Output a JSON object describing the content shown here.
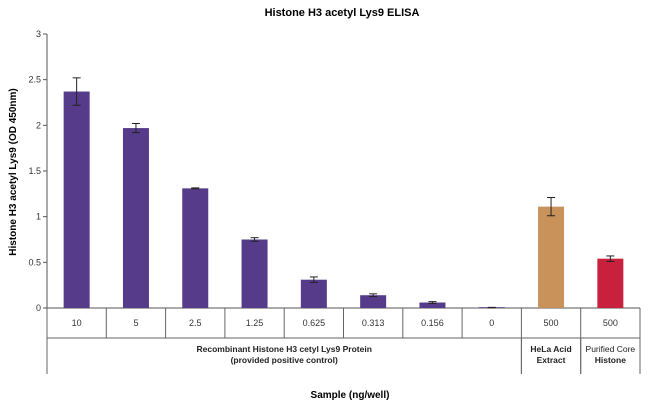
{
  "chart_data": {
    "type": "bar",
    "title": "Histone H3 acetyl Lys9 ELISA",
    "xlabel": "Sample (ng/well)",
    "ylabel": "Histone H3 acetyl Lys9 (OD 450nm)",
    "ylim": [
      0,
      3
    ],
    "yticks": [
      "0",
      "0.5",
      "1",
      "1.5",
      "2",
      "2.5",
      "3"
    ],
    "yticks_values": [
      0,
      0.5,
      1,
      1.5,
      2,
      2.5,
      3
    ],
    "grid": false,
    "categories": [
      "10",
      "5",
      "2.5",
      "1.25",
      "0.625",
      "0.313",
      "0.156",
      "0",
      "500",
      "500"
    ],
    "values": [
      2.37,
      1.97,
      1.31,
      0.75,
      0.31,
      0.14,
      0.06,
      0.005,
      1.11,
      0.54
    ],
    "errors": [
      0.15,
      0.05,
      0.005,
      0.02,
      0.03,
      0.015,
      0.01,
      0.002,
      0.1,
      0.03
    ],
    "bar_colors": [
      "#563b8a",
      "#563b8a",
      "#563b8a",
      "#563b8a",
      "#563b8a",
      "#563b8a",
      "#563b8a",
      "#563b8a",
      "#c8925a",
      "#c8213e"
    ],
    "groups": [
      {
        "lines": [
          "Recombinant Histone H3 cetyl Lys9 Protein",
          "(provided positive control)"
        ],
        "bold": [
          true,
          true
        ],
        "start": 0,
        "count": 8
      },
      {
        "lines": [
          "HeLa Acid",
          "Extract"
        ],
        "bold": [
          true,
          true
        ],
        "start": 8,
        "count": 1
      },
      {
        "lines": [
          "Purified Core",
          "Histone"
        ],
        "bold": [
          false,
          true
        ],
        "start": 9,
        "count": 1
      }
    ]
  }
}
